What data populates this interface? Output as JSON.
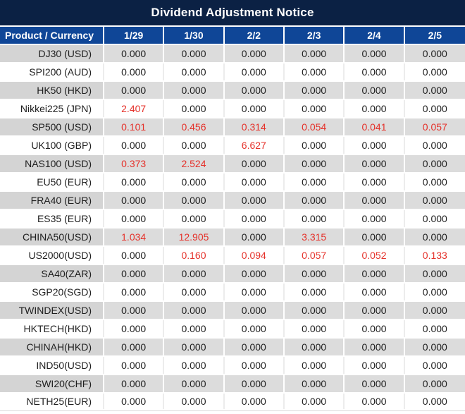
{
  "title": "Dividend Adjustment Notice",
  "colors": {
    "title_bar_bg": "#0b2144",
    "header_bg": "#0f4697",
    "row_gray_product_bg": "#d4d4d4",
    "row_gray_value_bg": "#dcdcdc",
    "red_value": "#e5312a",
    "text": "#1e1e1e"
  },
  "table": {
    "header": {
      "product_label": "Product / Currency",
      "dates": [
        "1/29",
        "1/30",
        "2/2",
        "2/3",
        "2/4",
        "2/5"
      ]
    },
    "rows": [
      {
        "product": "DJ30 (USD)",
        "values": [
          "0.000",
          "0.000",
          "0.000",
          "0.000",
          "0.000",
          "0.000"
        ],
        "red": [
          false,
          false,
          false,
          false,
          false,
          false
        ]
      },
      {
        "product": "SPI200 (AUD)",
        "values": [
          "0.000",
          "0.000",
          "0.000",
          "0.000",
          "0.000",
          "0.000"
        ],
        "red": [
          false,
          false,
          false,
          false,
          false,
          false
        ]
      },
      {
        "product": "HK50 (HKD)",
        "values": [
          "0.000",
          "0.000",
          "0.000",
          "0.000",
          "0.000",
          "0.000"
        ],
        "red": [
          false,
          false,
          false,
          false,
          false,
          false
        ]
      },
      {
        "product": "Nikkei225 (JPN)",
        "values": [
          "2.407",
          "0.000",
          "0.000",
          "0.000",
          "0.000",
          "0.000"
        ],
        "red": [
          true,
          false,
          false,
          false,
          false,
          false
        ]
      },
      {
        "product": "SP500 (USD)",
        "values": [
          "0.101",
          "0.456",
          "0.314",
          "0.054",
          "0.041",
          "0.057"
        ],
        "red": [
          true,
          true,
          true,
          true,
          true,
          true
        ]
      },
      {
        "product": "UK100 (GBP)",
        "values": [
          "0.000",
          "0.000",
          "6.627",
          "0.000",
          "0.000",
          "0.000"
        ],
        "red": [
          false,
          false,
          true,
          false,
          false,
          false
        ]
      },
      {
        "product": "NAS100 (USD)",
        "values": [
          "0.373",
          "2.524",
          "0.000",
          "0.000",
          "0.000",
          "0.000"
        ],
        "red": [
          true,
          true,
          false,
          false,
          false,
          false
        ]
      },
      {
        "product": "EU50 (EUR)",
        "values": [
          "0.000",
          "0.000",
          "0.000",
          "0.000",
          "0.000",
          "0.000"
        ],
        "red": [
          false,
          false,
          false,
          false,
          false,
          false
        ]
      },
      {
        "product": "FRA40 (EUR)",
        "values": [
          "0.000",
          "0.000",
          "0.000",
          "0.000",
          "0.000",
          "0.000"
        ],
        "red": [
          false,
          false,
          false,
          false,
          false,
          false
        ]
      },
      {
        "product": "ES35 (EUR)",
        "values": [
          "0.000",
          "0.000",
          "0.000",
          "0.000",
          "0.000",
          "0.000"
        ],
        "red": [
          false,
          false,
          false,
          false,
          false,
          false
        ]
      },
      {
        "product": "CHINA50(USD)",
        "values": [
          "1.034",
          "12.905",
          "0.000",
          "3.315",
          "0.000",
          "0.000"
        ],
        "red": [
          true,
          true,
          false,
          true,
          false,
          false
        ]
      },
      {
        "product": "US2000(USD)",
        "values": [
          "0.000",
          "0.160",
          "0.094",
          "0.057",
          "0.052",
          "0.133"
        ],
        "red": [
          false,
          true,
          true,
          true,
          true,
          true
        ]
      },
      {
        "product": "SA40(ZAR)",
        "values": [
          "0.000",
          "0.000",
          "0.000",
          "0.000",
          "0.000",
          "0.000"
        ],
        "red": [
          false,
          false,
          false,
          false,
          false,
          false
        ]
      },
      {
        "product": "SGP20(SGD)",
        "values": [
          "0.000",
          "0.000",
          "0.000",
          "0.000",
          "0.000",
          "0.000"
        ],
        "red": [
          false,
          false,
          false,
          false,
          false,
          false
        ]
      },
      {
        "product": "TWINDEX(USD)",
        "values": [
          "0.000",
          "0.000",
          "0.000",
          "0.000",
          "0.000",
          "0.000"
        ],
        "red": [
          false,
          false,
          false,
          false,
          false,
          false
        ]
      },
      {
        "product": "HKTECH(HKD)",
        "values": [
          "0.000",
          "0.000",
          "0.000",
          "0.000",
          "0.000",
          "0.000"
        ],
        "red": [
          false,
          false,
          false,
          false,
          false,
          false
        ]
      },
      {
        "product": "CHINAH(HKD)",
        "values": [
          "0.000",
          "0.000",
          "0.000",
          "0.000",
          "0.000",
          "0.000"
        ],
        "red": [
          false,
          false,
          false,
          false,
          false,
          false
        ]
      },
      {
        "product": "IND50(USD)",
        "values": [
          "0.000",
          "0.000",
          "0.000",
          "0.000",
          "0.000",
          "0.000"
        ],
        "red": [
          false,
          false,
          false,
          false,
          false,
          false
        ]
      },
      {
        "product": "SWI20(CHF)",
        "values": [
          "0.000",
          "0.000",
          "0.000",
          "0.000",
          "0.000",
          "0.000"
        ],
        "red": [
          false,
          false,
          false,
          false,
          false,
          false
        ]
      },
      {
        "product": "NETH25(EUR)",
        "values": [
          "0.000",
          "0.000",
          "0.000",
          "0.000",
          "0.000",
          "0.000"
        ],
        "red": [
          false,
          false,
          false,
          false,
          false,
          false
        ]
      }
    ]
  }
}
